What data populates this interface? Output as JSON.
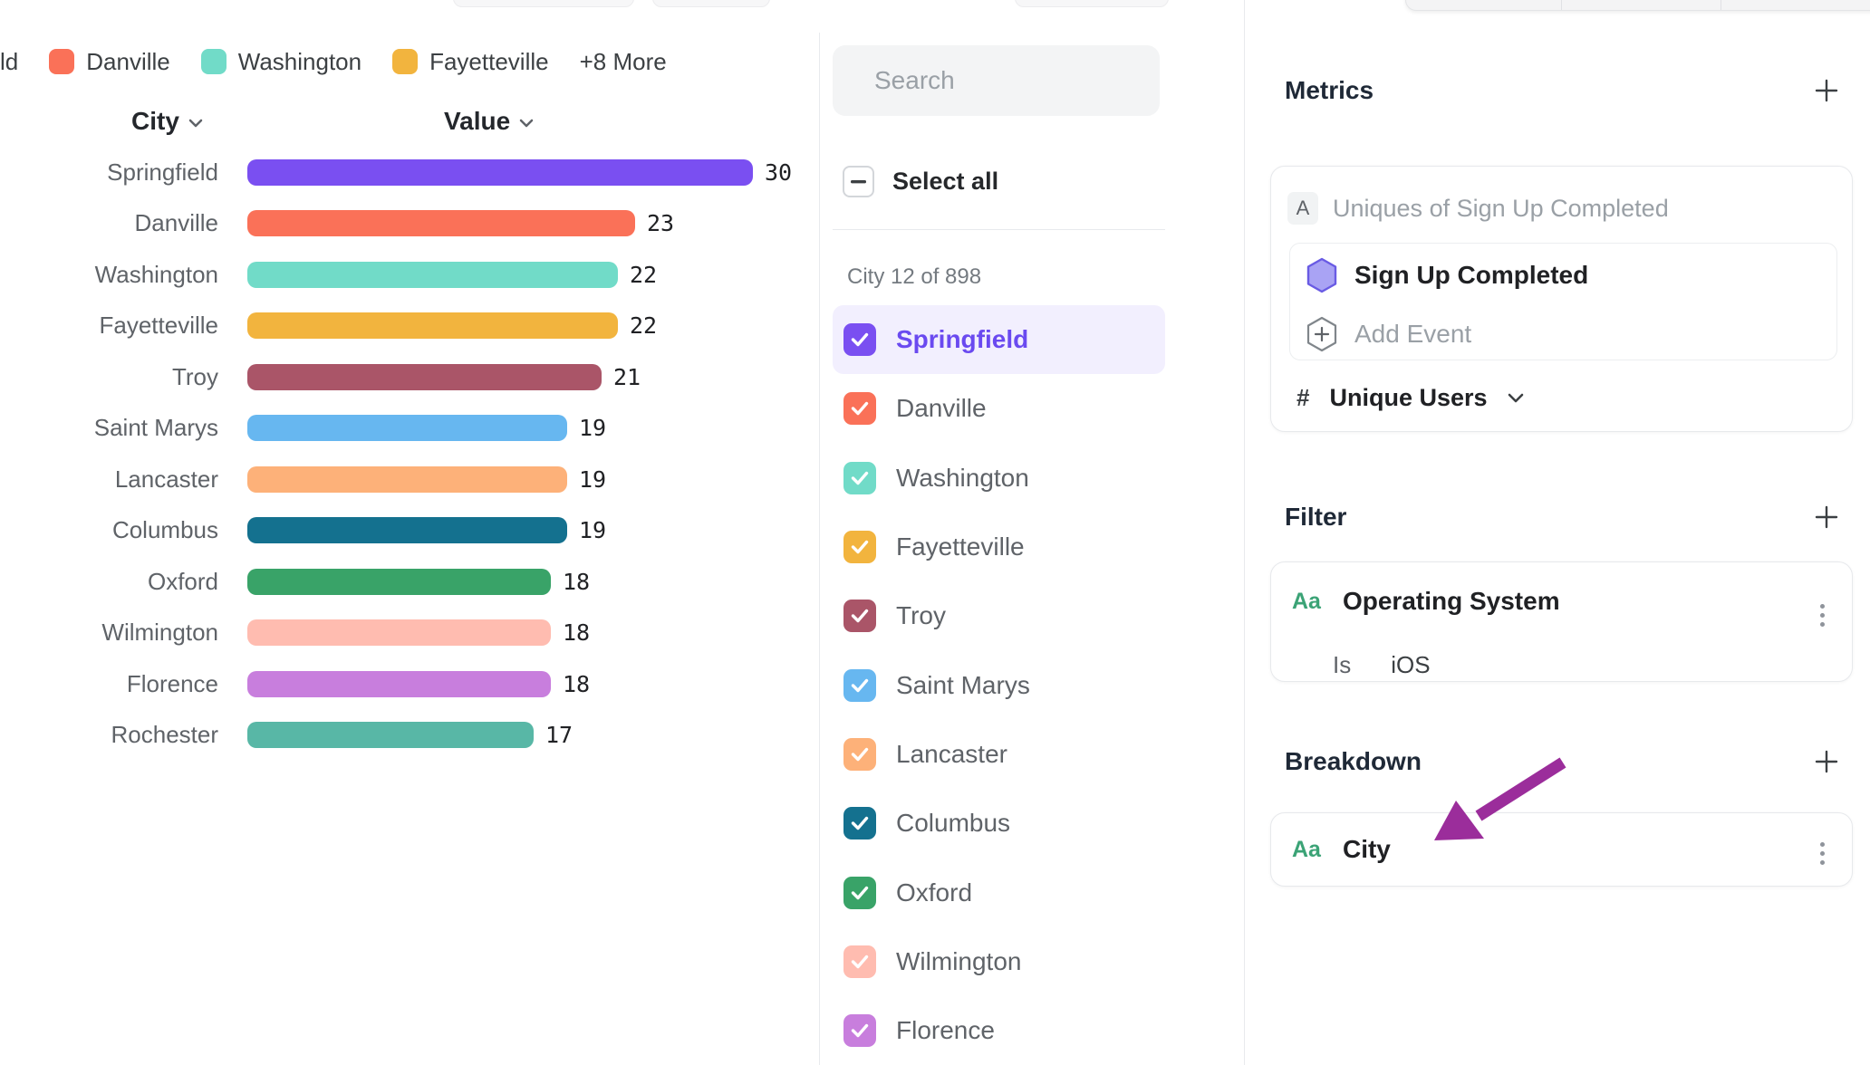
{
  "chart_data": {
    "type": "bar",
    "orientation": "horizontal",
    "title": "",
    "column_headers": {
      "city": "City",
      "value": "Value"
    },
    "categories": [
      "Springfield",
      "Danville",
      "Washington",
      "Fayetteville",
      "Troy",
      "Saint Marys",
      "Lancaster",
      "Columbus",
      "Oxford",
      "Wilmington",
      "Florence",
      "Rochester"
    ],
    "values": [
      30,
      23,
      22,
      22,
      21,
      19,
      19,
      19,
      18,
      18,
      18,
      17
    ],
    "colors": [
      "#7A4FF1",
      "#FA7158",
      "#71DBC8",
      "#F2B43E",
      "#AA5568",
      "#67B7F0",
      "#FDB179",
      "#14718F",
      "#39A368",
      "#FFBCB0",
      "#C87EDD",
      "#58B7A6"
    ],
    "xlim": [
      0,
      30
    ],
    "grid": false,
    "legend_position": "top"
  },
  "legend": {
    "clipped_label": "ld",
    "items": [
      {
        "label": "Danville",
        "color": "#FA7158"
      },
      {
        "label": "Washington",
        "color": "#71DBC8"
      },
      {
        "label": "Fayetteville",
        "color": "#F2B43E"
      }
    ],
    "more_label": "+8 More"
  },
  "city_panel": {
    "search_placeholder": "Search",
    "select_all_label": "Select all",
    "count_label": "City 12 of 898",
    "items": [
      {
        "label": "Springfield",
        "color": "#7A4FF1",
        "checked": true,
        "active": true
      },
      {
        "label": "Danville",
        "color": "#FA7158",
        "checked": true,
        "active": false
      },
      {
        "label": "Washington",
        "color": "#71DBC8",
        "checked": true,
        "active": false
      },
      {
        "label": "Fayetteville",
        "color": "#F2B43E",
        "checked": true,
        "active": false
      },
      {
        "label": "Troy",
        "color": "#AA5568",
        "checked": true,
        "active": false
      },
      {
        "label": "Saint Marys",
        "color": "#67B7F0",
        "checked": true,
        "active": false
      },
      {
        "label": "Lancaster",
        "color": "#FDB179",
        "checked": true,
        "active": false
      },
      {
        "label": "Columbus",
        "color": "#14718F",
        "checked": true,
        "active": false
      },
      {
        "label": "Oxford",
        "color": "#39A368",
        "checked": true,
        "active": false
      },
      {
        "label": "Wilmington",
        "color": "#FFBCB0",
        "checked": true,
        "active": false
      },
      {
        "label": "Florence",
        "color": "#C87EDD",
        "checked": true,
        "active": false
      }
    ]
  },
  "inspector": {
    "metrics": {
      "title": "Metrics",
      "badge": "A",
      "summary": "Uniques of Sign Up Completed",
      "event_name": "Sign Up Completed",
      "add_event_label": "Add Event",
      "measure_hash": "#",
      "measure_label": "Unique Users"
    },
    "filter": {
      "title": "Filter",
      "type_badge": "Aa",
      "property": "Operating System",
      "operator": "Is",
      "value": "iOS"
    },
    "breakdown": {
      "title": "Breakdown",
      "type_badge": "Aa",
      "property": "City"
    }
  },
  "annotation": {
    "arrow_color": "#9B2D9B"
  },
  "accent_colors": {
    "active_row_bg": "#F2EFFE",
    "active_text": "#6A4AF0",
    "type_badge_green": "#3BA376"
  }
}
